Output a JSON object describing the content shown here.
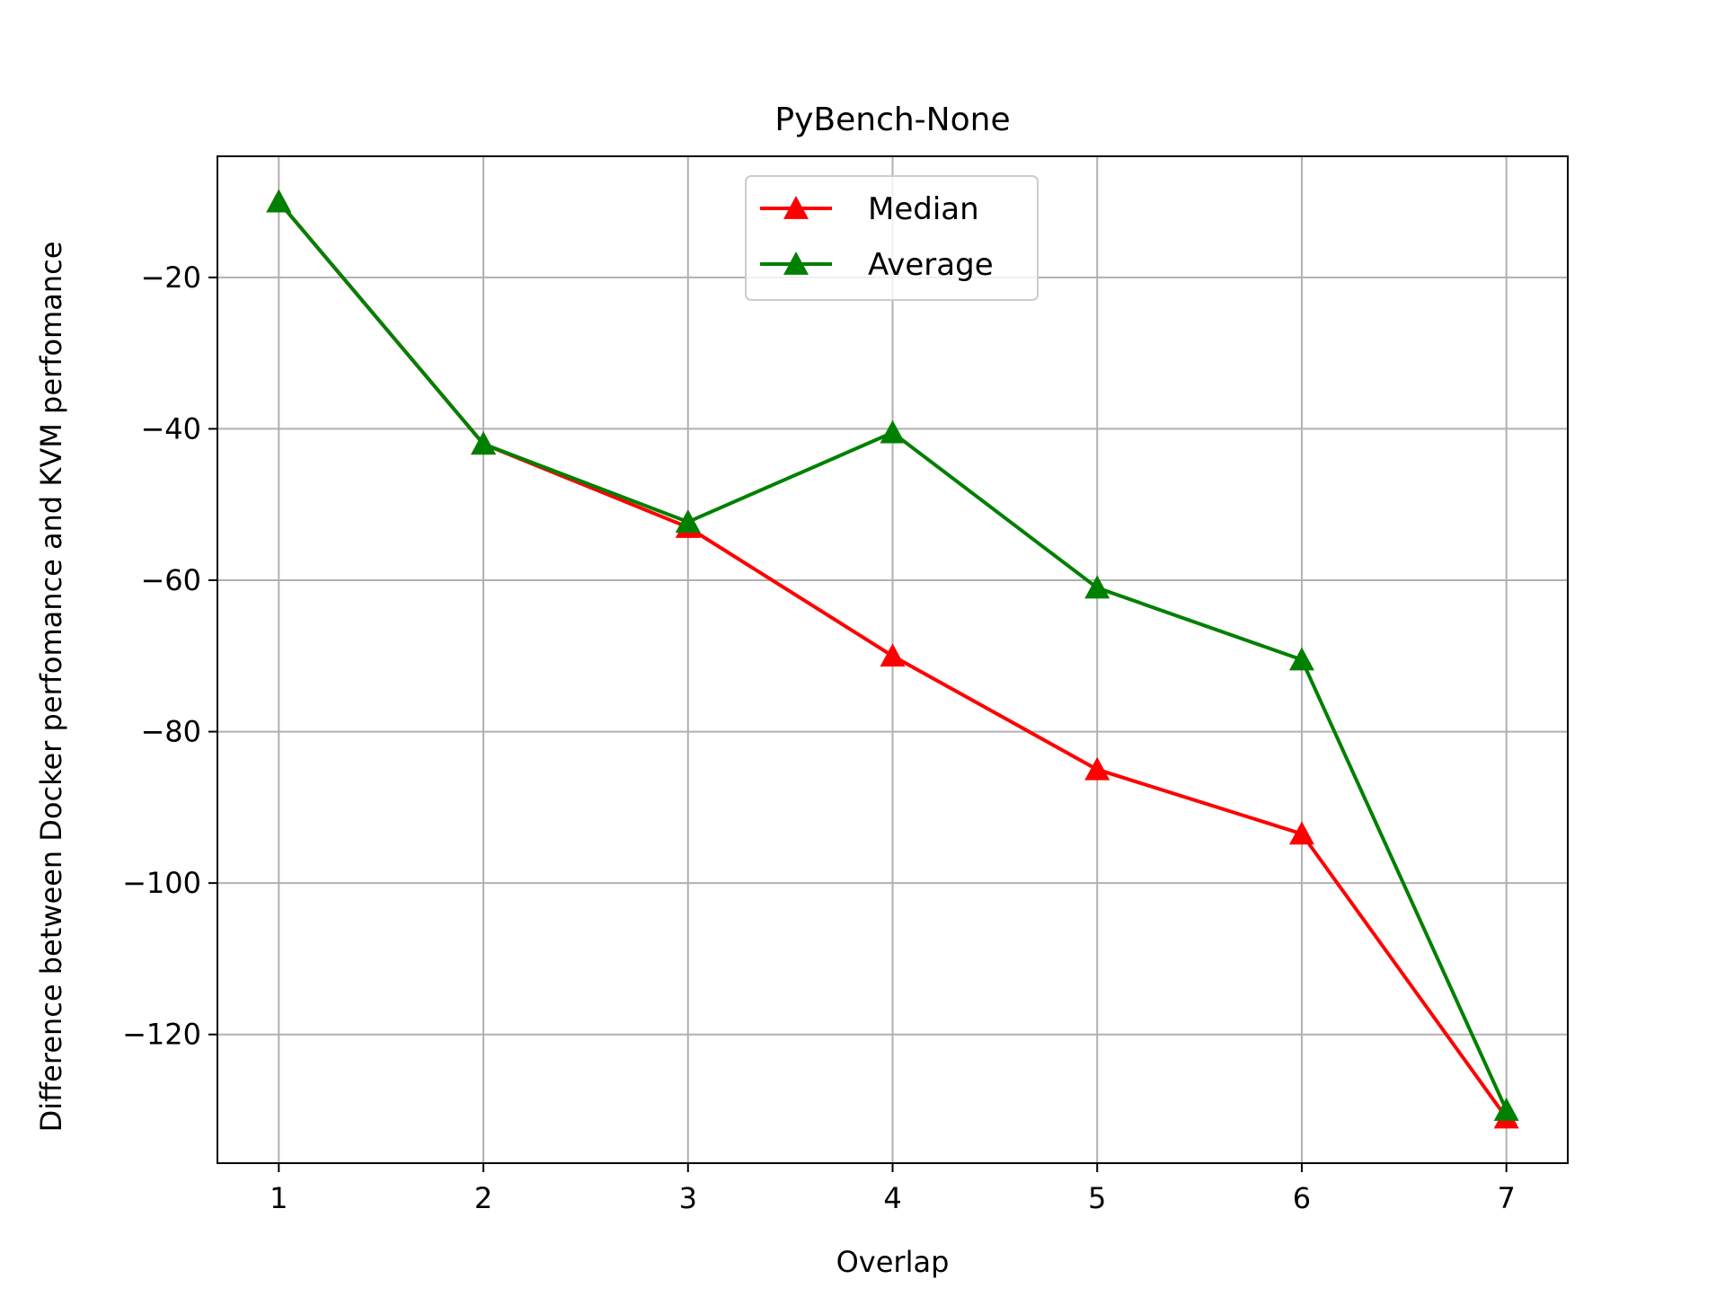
{
  "chart_data": {
    "type": "line",
    "title": "PyBench-None",
    "xlabel": "Overlap",
    "ylabel": "Difference between Docker perfomance and KVM perfomance",
    "x": [
      1,
      2,
      3,
      4,
      5,
      6,
      7
    ],
    "xticks": [
      "1",
      "2",
      "3",
      "4",
      "5",
      "6",
      "7"
    ],
    "yticks": [
      -20,
      -40,
      -60,
      -80,
      -100,
      -120
    ],
    "ytick_labels": [
      "−20",
      "−40",
      "−60",
      "−80",
      "−100",
      "−120"
    ],
    "xlim": [
      0.7,
      7.3
    ],
    "ylim": [
      -137,
      -4
    ],
    "grid": true,
    "legend_position": "upper center",
    "marker": "triangle",
    "series": [
      {
        "name": "Median",
        "color": "#ff0000",
        "values": [
          -10,
          -42,
          -53,
          -70,
          -85,
          -93.5,
          -131
        ]
      },
      {
        "name": "Average",
        "color": "#008000",
        "values": [
          -10,
          -42,
          -52.3,
          -40.5,
          -61,
          -70.5,
          -130
        ]
      }
    ]
  }
}
